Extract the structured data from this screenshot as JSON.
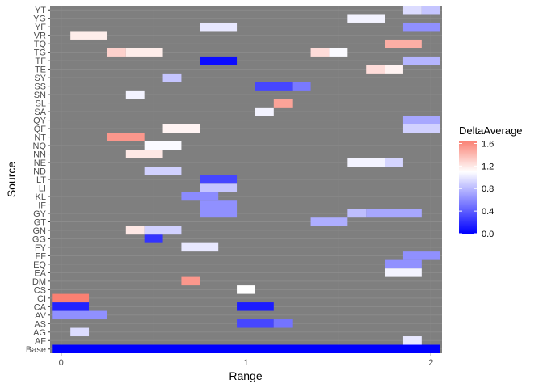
{
  "chart_data": {
    "type": "heatmap",
    "xlabel": "Range",
    "ylabel": "Source",
    "x_ticks": [
      0,
      1,
      2
    ],
    "xlim": [
      -0.06,
      2.06
    ],
    "legend": {
      "title": "DeltaAverage",
      "ticks": [
        "0.0",
        "0.4",
        "0.8",
        "1.2",
        "1.6"
      ],
      "tick_values": [
        0.0,
        0.4,
        0.8,
        1.2,
        1.6
      ],
      "range": [
        0.0,
        1.65
      ],
      "placement": "right",
      "colors": {
        "low": "#0000ff",
        "mid": "#ffffff",
        "high": "#fa8072",
        "mid_value": 1.1
      }
    },
    "panel_background": "#7f7f7f",
    "grid": true,
    "categories": [
      "Base",
      "AF",
      "AG",
      "AS",
      "AV",
      "CA",
      "CI",
      "CS",
      "DM",
      "EA",
      "EQ",
      "FF",
      "FY",
      "GG",
      "GN",
      "GT",
      "GY",
      "IF",
      "KL",
      "LI",
      "LT",
      "ND",
      "NE",
      "NN",
      "NQ",
      "NT",
      "QF",
      "QY",
      "SA",
      "SL",
      "SN",
      "SS",
      "SY",
      "TE",
      "TF",
      "TG",
      "TQ",
      "VR",
      "YF",
      "YG",
      "YT"
    ],
    "cells": [
      {
        "y": "Base",
        "x0": -0.05,
        "x1": 2.05,
        "v": 0.0
      },
      {
        "y": "AF",
        "x0": 1.85,
        "x1": 1.95,
        "v": 1.0
      },
      {
        "y": "AG",
        "x0": 0.05,
        "x1": 0.15,
        "v": 0.95
      },
      {
        "y": "AS",
        "x0": 0.95,
        "x1": 1.15,
        "v": 0.3
      },
      {
        "y": "AS",
        "x0": 1.15,
        "x1": 1.25,
        "v": 0.5
      },
      {
        "y": "AV",
        "x0": -0.05,
        "x1": 0.25,
        "v": 0.62
      },
      {
        "y": "CA",
        "x0": -0.05,
        "x1": 0.15,
        "v": 0.15
      },
      {
        "y": "CA",
        "x0": 0.95,
        "x1": 1.15,
        "v": 0.12
      },
      {
        "y": "CI",
        "x0": -0.05,
        "x1": 0.15,
        "v": 1.65
      },
      {
        "y": "CS",
        "x0": 0.95,
        "x1": 1.05,
        "v": 1.1
      },
      {
        "y": "DM",
        "x0": 0.65,
        "x1": 0.75,
        "v": 1.55
      },
      {
        "y": "EA",
        "x0": 1.75,
        "x1": 1.95,
        "v": 1.05
      },
      {
        "y": "EQ",
        "x0": 1.75,
        "x1": 1.95,
        "v": 0.62
      },
      {
        "y": "FF",
        "x0": 1.85,
        "x1": 2.05,
        "v": 0.62
      },
      {
        "y": "FY",
        "x0": 0.65,
        "x1": 0.85,
        "v": 1.0
      },
      {
        "y": "GG",
        "x0": 0.45,
        "x1": 0.55,
        "v": 0.22
      },
      {
        "y": "GN",
        "x0": 0.35,
        "x1": 0.45,
        "v": 1.2
      },
      {
        "y": "GN",
        "x0": 0.45,
        "x1": 0.65,
        "v": 0.9
      },
      {
        "y": "GT",
        "x0": 1.35,
        "x1": 1.55,
        "v": 0.75
      },
      {
        "y": "GY",
        "x0": 0.75,
        "x1": 0.95,
        "v": 0.62
      },
      {
        "y": "GY",
        "x0": 1.55,
        "x1": 1.65,
        "v": 0.82
      },
      {
        "y": "GY",
        "x0": 1.65,
        "x1": 1.95,
        "v": 0.72
      },
      {
        "y": "IF",
        "x0": 0.75,
        "x1": 0.95,
        "v": 0.62
      },
      {
        "y": "KL",
        "x0": 0.65,
        "x1": 0.85,
        "v": 0.6
      },
      {
        "y": "LI",
        "x0": 0.75,
        "x1": 0.95,
        "v": 0.85
      },
      {
        "y": "LT",
        "x0": 0.75,
        "x1": 0.95,
        "v": 0.3
      },
      {
        "y": "ND",
        "x0": 0.45,
        "x1": 0.65,
        "v": 0.9
      },
      {
        "y": "NE",
        "x0": 1.55,
        "x1": 1.75,
        "v": 1.05
      },
      {
        "y": "NE",
        "x0": 1.75,
        "x1": 1.85,
        "v": 0.92
      },
      {
        "y": "NN",
        "x0": 0.35,
        "x1": 0.55,
        "v": 1.2
      },
      {
        "y": "NQ",
        "x0": 0.45,
        "x1": 0.65,
        "v": 1.08
      },
      {
        "y": "NT",
        "x0": 0.25,
        "x1": 0.45,
        "v": 1.55
      },
      {
        "y": "QF",
        "x0": 0.55,
        "x1": 0.75,
        "v": 1.15
      },
      {
        "y": "QF",
        "x0": 1.85,
        "x1": 2.05,
        "v": 0.9
      },
      {
        "y": "QY",
        "x0": 1.85,
        "x1": 2.05,
        "v": 0.72
      },
      {
        "y": "SA",
        "x0": 1.05,
        "x1": 1.15,
        "v": 1.05
      },
      {
        "y": "SL",
        "x0": 1.15,
        "x1": 1.25,
        "v": 1.5
      },
      {
        "y": "SN",
        "x0": 0.35,
        "x1": 0.45,
        "v": 1.05
      },
      {
        "y": "SS",
        "x0": 1.05,
        "x1": 1.25,
        "v": 0.3
      },
      {
        "y": "SS",
        "x0": 1.25,
        "x1": 1.35,
        "v": 0.52
      },
      {
        "y": "SY",
        "x0": 0.55,
        "x1": 0.65,
        "v": 0.85
      },
      {
        "y": "TE",
        "x0": 1.65,
        "x1": 1.75,
        "v": 1.25
      },
      {
        "y": "TE",
        "x0": 1.75,
        "x1": 1.85,
        "v": 1.15
      },
      {
        "y": "TF",
        "x0": 0.75,
        "x1": 0.95,
        "v": 0.05
      },
      {
        "y": "TF",
        "x0": 1.85,
        "x1": 2.05,
        "v": 0.78
      },
      {
        "y": "TG",
        "x0": 0.25,
        "x1": 0.35,
        "v": 1.3
      },
      {
        "y": "TG",
        "x0": 0.35,
        "x1": 0.55,
        "v": 1.18
      },
      {
        "y": "TG",
        "x0": 1.35,
        "x1": 1.45,
        "v": 1.25
      },
      {
        "y": "TG",
        "x0": 1.45,
        "x1": 1.55,
        "v": 1.08
      },
      {
        "y": "TQ",
        "x0": 1.75,
        "x1": 1.95,
        "v": 1.45
      },
      {
        "y": "VR",
        "x0": 0.05,
        "x1": 0.25,
        "v": 1.18
      },
      {
        "y": "YF",
        "x0": 0.75,
        "x1": 0.95,
        "v": 1.0
      },
      {
        "y": "YF",
        "x0": 1.85,
        "x1": 2.05,
        "v": 0.62
      },
      {
        "y": "YG",
        "x0": 1.55,
        "x1": 1.75,
        "v": 1.05
      },
      {
        "y": "YT",
        "x0": 1.85,
        "x1": 1.95,
        "v": 0.95
      },
      {
        "y": "YT",
        "x0": 1.95,
        "x1": 2.05,
        "v": 0.85
      }
    ]
  }
}
